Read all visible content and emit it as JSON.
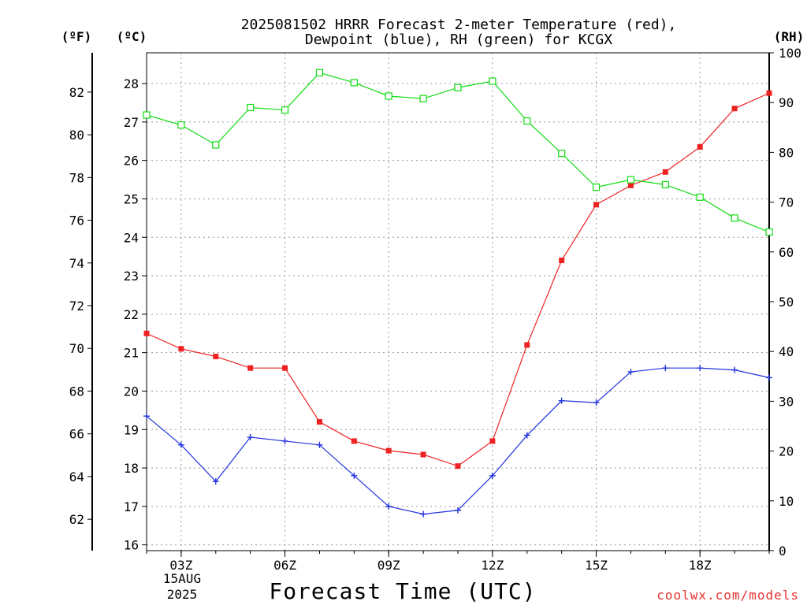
{
  "title": {
    "line1": "2025081502 HRRR Forecast 2-meter Temperature (red),",
    "line2": "Dewpoint (blue), RH (green) for KCGX"
  },
  "xlabel": "Forecast Time (UTC)",
  "date_label": {
    "day": "15AUG",
    "year": "2025"
  },
  "credit": "coolwx.com/models",
  "colors": {
    "temperature": "#ee2222",
    "dewpoint": "#2233dd",
    "rh": "#11dd11",
    "credit": "#e83030"
  },
  "chart_data": {
    "type": "line",
    "x": [
      2,
      3,
      4,
      5,
      6,
      7,
      8,
      9,
      10,
      11,
      12,
      13,
      14,
      15,
      16,
      17,
      18,
      19,
      20
    ],
    "x_ticks": [
      {
        "x": 3,
        "label": "03Z"
      },
      {
        "x": 6,
        "label": "06Z"
      },
      {
        "x": 9,
        "label": "09Z"
      },
      {
        "x": 12,
        "label": "12Z"
      },
      {
        "x": 15,
        "label": "15Z"
      },
      {
        "x": 18,
        "label": "18Z"
      }
    ],
    "xlim": [
      2,
      20
    ],
    "axes": {
      "left_f": {
        "label": "(ºF)",
        "ticks": [
          62,
          64,
          66,
          68,
          70,
          72,
          74,
          76,
          78,
          80,
          82
        ]
      },
      "left_c": {
        "label": "(ºC)",
        "ticks": [
          16,
          17,
          18,
          19,
          20,
          21,
          22,
          23,
          24,
          25,
          26,
          27,
          28
        ],
        "ylim": [
          15.85,
          28.8
        ]
      },
      "right_rh": {
        "label": "(RH)",
        "ticks": [
          0,
          10,
          20,
          30,
          40,
          50,
          60,
          70,
          80,
          90,
          100
        ],
        "ylim": [
          0,
          100
        ]
      }
    },
    "grid": true,
    "series": [
      {
        "name": "Temperature",
        "axis": "left_c",
        "marker": "filled-square",
        "values": [
          21.5,
          21.1,
          20.9,
          20.6,
          20.6,
          19.2,
          18.7,
          18.45,
          18.35,
          18.05,
          18.7,
          21.2,
          23.4,
          24.85,
          25.35,
          25.7,
          26.35,
          27.35,
          27.75
        ]
      },
      {
        "name": "Dewpoint",
        "axis": "left_c",
        "marker": "plus",
        "values": [
          19.35,
          18.6,
          17.65,
          18.8,
          18.7,
          18.6,
          17.8,
          17.0,
          16.8,
          16.9,
          17.8,
          18.85,
          19.75,
          19.7,
          20.5,
          20.6,
          20.6,
          20.55,
          20.35
        ]
      },
      {
        "name": "RH",
        "axis": "right_rh",
        "marker": "open-square",
        "values": [
          87.5,
          85.5,
          81.5,
          89.0,
          88.5,
          96.0,
          94.0,
          91.3,
          90.8,
          93.0,
          94.3,
          86.3,
          79.8,
          73.0,
          74.5,
          73.5,
          71.0,
          66.8,
          64.0
        ]
      }
    ]
  }
}
